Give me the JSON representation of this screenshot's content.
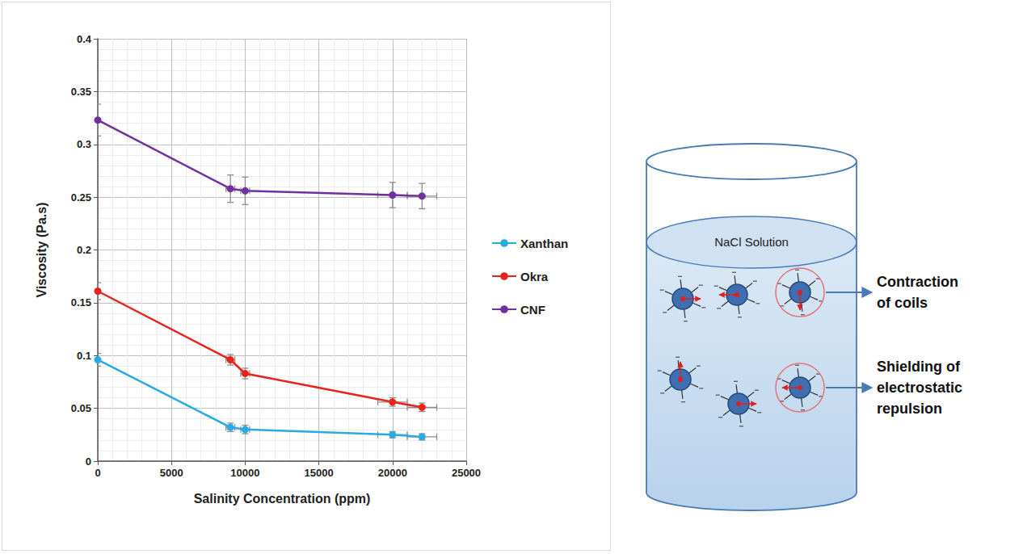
{
  "chart_data": {
    "type": "line",
    "x_label": "Salinity Concentration (ppm)",
    "y_label": "Viscosity (Pa.s)",
    "x": [
      0,
      9000,
      10000,
      20000,
      22000
    ],
    "xlim": [
      0,
      25000
    ],
    "xticks": [
      0,
      5000,
      10000,
      15000,
      20000,
      25000
    ],
    "ylim": [
      0,
      0.4
    ],
    "yticks": [
      0,
      0.05,
      0.1,
      0.15,
      0.2,
      0.25,
      0.3,
      0.35,
      0.4
    ],
    "grid": true,
    "legend": "right",
    "marker": "circle",
    "series": [
      {
        "name": "Xanthan",
        "color": "#29abe2",
        "values": [
          0.096,
          0.032,
          0.03,
          0.025,
          0.023
        ],
        "y_error": [
          0.006,
          0.004,
          0.004,
          0.003,
          0.003
        ],
        "x_error": [
          0,
          300,
          300,
          1000,
          1000
        ]
      },
      {
        "name": "Okra",
        "color": "#e8231c",
        "values": [
          0.161,
          0.096,
          0.083,
          0.056,
          0.051
        ],
        "y_error": [
          0.008,
          0.005,
          0.005,
          0.004,
          0.004
        ],
        "x_error": [
          0,
          300,
          300,
          1000,
          1000
        ]
      },
      {
        "name": "CNF",
        "color": "#7030a0",
        "values": [
          0.323,
          0.258,
          0.256,
          0.252,
          0.251
        ],
        "y_error": [
          0.015,
          0.013,
          0.013,
          0.012,
          0.012
        ],
        "x_error": [
          0,
          300,
          300,
          1000,
          1000
        ]
      }
    ]
  },
  "diagram": {
    "solution_label": "NaCl Solution",
    "annotations": [
      "Contraction of coils",
      "Shielding of electrostatic repulsion"
    ]
  }
}
